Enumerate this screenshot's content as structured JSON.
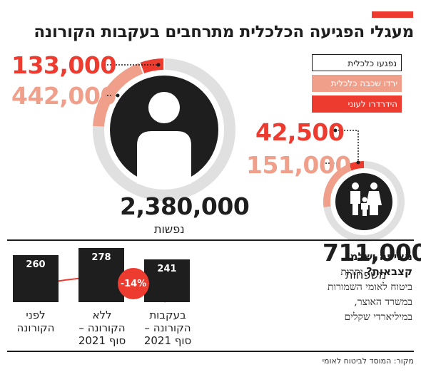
{
  "title": "מעגלי הפגיעה הכלכלית מתרחבים בעקבות הקורונה",
  "colors": {
    "accent": "#ee3b30",
    "salmon": "#f0a08a",
    "dark": "#1e1e1e",
    "ring": "#e0e0e0"
  },
  "legend": {
    "hit": "נפגעו כלכלית",
    "declined": "ירדו שכבה כלכלית",
    "poverty": "הידרדרו לעוני"
  },
  "people_icon": "person-icon",
  "family_icon": "family-icon",
  "chart_data": [
    {
      "type": "pie",
      "title": "נפשות",
      "total": 2380000,
      "total_label": "2,380,000",
      "series": [
        {
          "name": "ירדו שכבה כלכלית",
          "value": 442000,
          "label": "442,000"
        },
        {
          "name": "הידרדרו לעוני",
          "value": 133000,
          "label": "133,000"
        }
      ]
    },
    {
      "type": "pie",
      "title": "משפחות",
      "total": 711000,
      "total_label": "711,000",
      "series": [
        {
          "name": "ירדו שכבה כלכלית",
          "value": 151000,
          "label": "151,000"
        },
        {
          "name": "הידרדרו לעוני",
          "value": 42500,
          "label": "42,500"
        }
      ]
    },
    {
      "type": "bar",
      "categories": [
        "לפני הקורונה",
        "ללא הקורונה - סוף 2021",
        "בעקבות הקורונה - סוף 2021"
      ],
      "values": [
        260,
        278,
        241
      ],
      "annotation": "-14%"
    }
  ],
  "bars": [
    {
      "value": "260",
      "line1": "לפני",
      "line2": "הקורונה",
      "line3": ""
    },
    {
      "value": "278",
      "line1": "ללא",
      "line2": "הקורונה –",
      "line3": "סוף 2021"
    },
    {
      "value": "241",
      "line1": "בעקבות",
      "line2": "הקורונה –",
      "line3": "סוף 2021"
    }
  ],
  "panel": {
    "heading_1": "מאיפה ישלמו",
    "heading_2": "קצבאות?",
    "body_1": " יתרות",
    "body_2": "ביטוח לאומי השמורות",
    "body_3": "במשרד האוצר,",
    "body_4": "במיליארדי שקלים"
  },
  "source": "מקור: המוסד לביטוח לאומי"
}
